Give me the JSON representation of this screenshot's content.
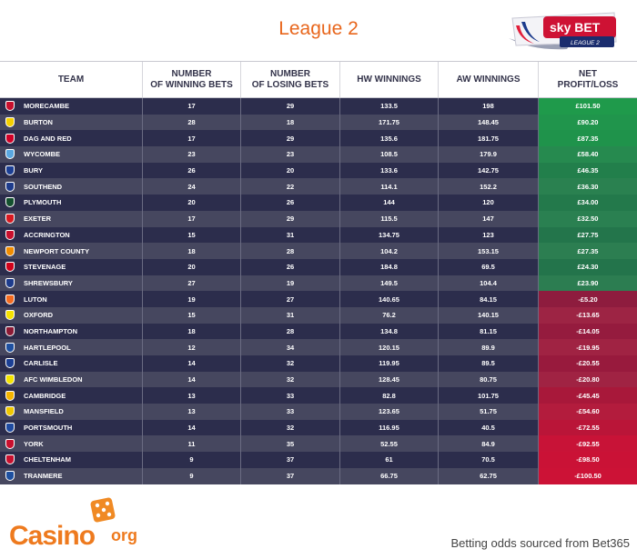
{
  "title": "League 2",
  "logo": {
    "brand": "sky BET",
    "sub": "LEAGUE 2"
  },
  "chart_data": {
    "type": "table",
    "columns": [
      "TEAM",
      "NUMBER\nOF WINNING BETS",
      "NUMBER\nOF LOSING BETS",
      "HW WINNINGS",
      "AW WINNINGS",
      "NET\nPROFIT/LOSS"
    ],
    "rows": [
      {
        "team": "MORECAMBE",
        "win": "17",
        "lose": "29",
        "hw": "133.5",
        "aw": "198",
        "net": "£101.50"
      },
      {
        "team": "BURTON",
        "win": "28",
        "lose": "18",
        "hw": "171.75",
        "aw": "148.45",
        "net": "£90.20"
      },
      {
        "team": "DAG AND RED",
        "win": "17",
        "lose": "29",
        "hw": "135.6",
        "aw": "181.75",
        "net": "£87.35"
      },
      {
        "team": "WYCOMBE",
        "win": "23",
        "lose": "23",
        "hw": "108.5",
        "aw": "179.9",
        "net": "£58.40"
      },
      {
        "team": "BURY",
        "win": "26",
        "lose": "20",
        "hw": "133.6",
        "aw": "142.75",
        "net": "£46.35"
      },
      {
        "team": "SOUTHEND",
        "win": "24",
        "lose": "22",
        "hw": "114.1",
        "aw": "152.2",
        "net": "£36.30"
      },
      {
        "team": "PLYMOUTH",
        "win": "20",
        "lose": "26",
        "hw": "144",
        "aw": "120",
        "net": "£34.00"
      },
      {
        "team": "EXETER",
        "win": "17",
        "lose": "29",
        "hw": "115.5",
        "aw": "147",
        "net": "£32.50"
      },
      {
        "team": "ACCRINGTON",
        "win": "15",
        "lose": "31",
        "hw": "134.75",
        "aw": "123",
        "net": "£27.75"
      },
      {
        "team": "NEWPORT COUNTY",
        "win": "18",
        "lose": "28",
        "hw": "104.2",
        "aw": "153.15",
        "net": "£27.35"
      },
      {
        "team": "STEVENAGE",
        "win": "20",
        "lose": "26",
        "hw": "184.8",
        "aw": "69.5",
        "net": "£24.30"
      },
      {
        "team": "SHREWSBURY",
        "win": "27",
        "lose": "19",
        "hw": "149.5",
        "aw": "104.4",
        "net": "£23.90"
      },
      {
        "team": "LUTON",
        "win": "19",
        "lose": "27",
        "hw": "140.65",
        "aw": "84.15",
        "net": "-£5.20"
      },
      {
        "team": "OXFORD",
        "win": "15",
        "lose": "31",
        "hw": "76.2",
        "aw": "140.15",
        "net": "-£13.65"
      },
      {
        "team": "NORTHAMPTON",
        "win": "18",
        "lose": "28",
        "hw": "134.8",
        "aw": "81.15",
        "net": "-£14.05"
      },
      {
        "team": "HARTLEPOOL",
        "win": "12",
        "lose": "34",
        "hw": "120.15",
        "aw": "89.9",
        "net": "-£19.95"
      },
      {
        "team": "CARLISLE",
        "win": "14",
        "lose": "32",
        "hw": "119.95",
        "aw": "89.5",
        "net": "-£20.55"
      },
      {
        "team": "AFC WIMBLEDON",
        "win": "14",
        "lose": "32",
        "hw": "128.45",
        "aw": "80.75",
        "net": "-£20.80"
      },
      {
        "team": "CAMBRIDGE",
        "win": "13",
        "lose": "33",
        "hw": "82.8",
        "aw": "101.75",
        "net": "-£45.45"
      },
      {
        "team": "MANSFIELD",
        "win": "13",
        "lose": "33",
        "hw": "123.65",
        "aw": "51.75",
        "net": "-£54.60"
      },
      {
        "team": "PORTSMOUTH",
        "win": "14",
        "lose": "32",
        "hw": "116.95",
        "aw": "40.5",
        "net": "-£72.55"
      },
      {
        "team": "YORK",
        "win": "11",
        "lose": "35",
        "hw": "52.55",
        "aw": "84.9",
        "net": "-£92.55"
      },
      {
        "team": "CHELTENHAM",
        "win": "9",
        "lose": "37",
        "hw": "61",
        "aw": "70.5",
        "net": "-£98.50"
      },
      {
        "team": "TRANMERE",
        "win": "9",
        "lose": "37",
        "hw": "66.75",
        "aw": "62.75",
        "net": "-£100.50"
      }
    ],
    "net_values": [
      101.5,
      90.2,
      87.35,
      58.4,
      46.35,
      36.3,
      34.0,
      32.5,
      27.75,
      27.35,
      24.3,
      23.9,
      -5.2,
      -13.65,
      -14.05,
      -19.95,
      -20.55,
      -20.8,
      -45.45,
      -54.6,
      -72.55,
      -92.55,
      -98.5,
      -100.5
    ],
    "crest_colors": [
      "#c8102e",
      "#f5d000",
      "#d00027",
      "#5aa7e0",
      "#1c3f94",
      "#1e3c8c",
      "#14502f",
      "#d71920",
      "#c8102e",
      "#f08c00",
      "#d0021b",
      "#1e3c8c",
      "#f46a1f",
      "#f6e200",
      "#8b1a35",
      "#1e50a0",
      "#1c3f94",
      "#f4e400",
      "#f5b400",
      "#f0c800",
      "#1e4aa0",
      "#c8102e",
      "#c8102e",
      "#1e50a0"
    ],
    "colors": {
      "positive": "#1f9a4b",
      "negative": "#cc1236",
      "row_dark": "#2c2d4c",
      "row_light": "#46475f"
    }
  },
  "footer": {
    "casino_brand": "Casino",
    "casino_suffix": "org",
    "source": "Betting odds sourced from Bet365"
  }
}
